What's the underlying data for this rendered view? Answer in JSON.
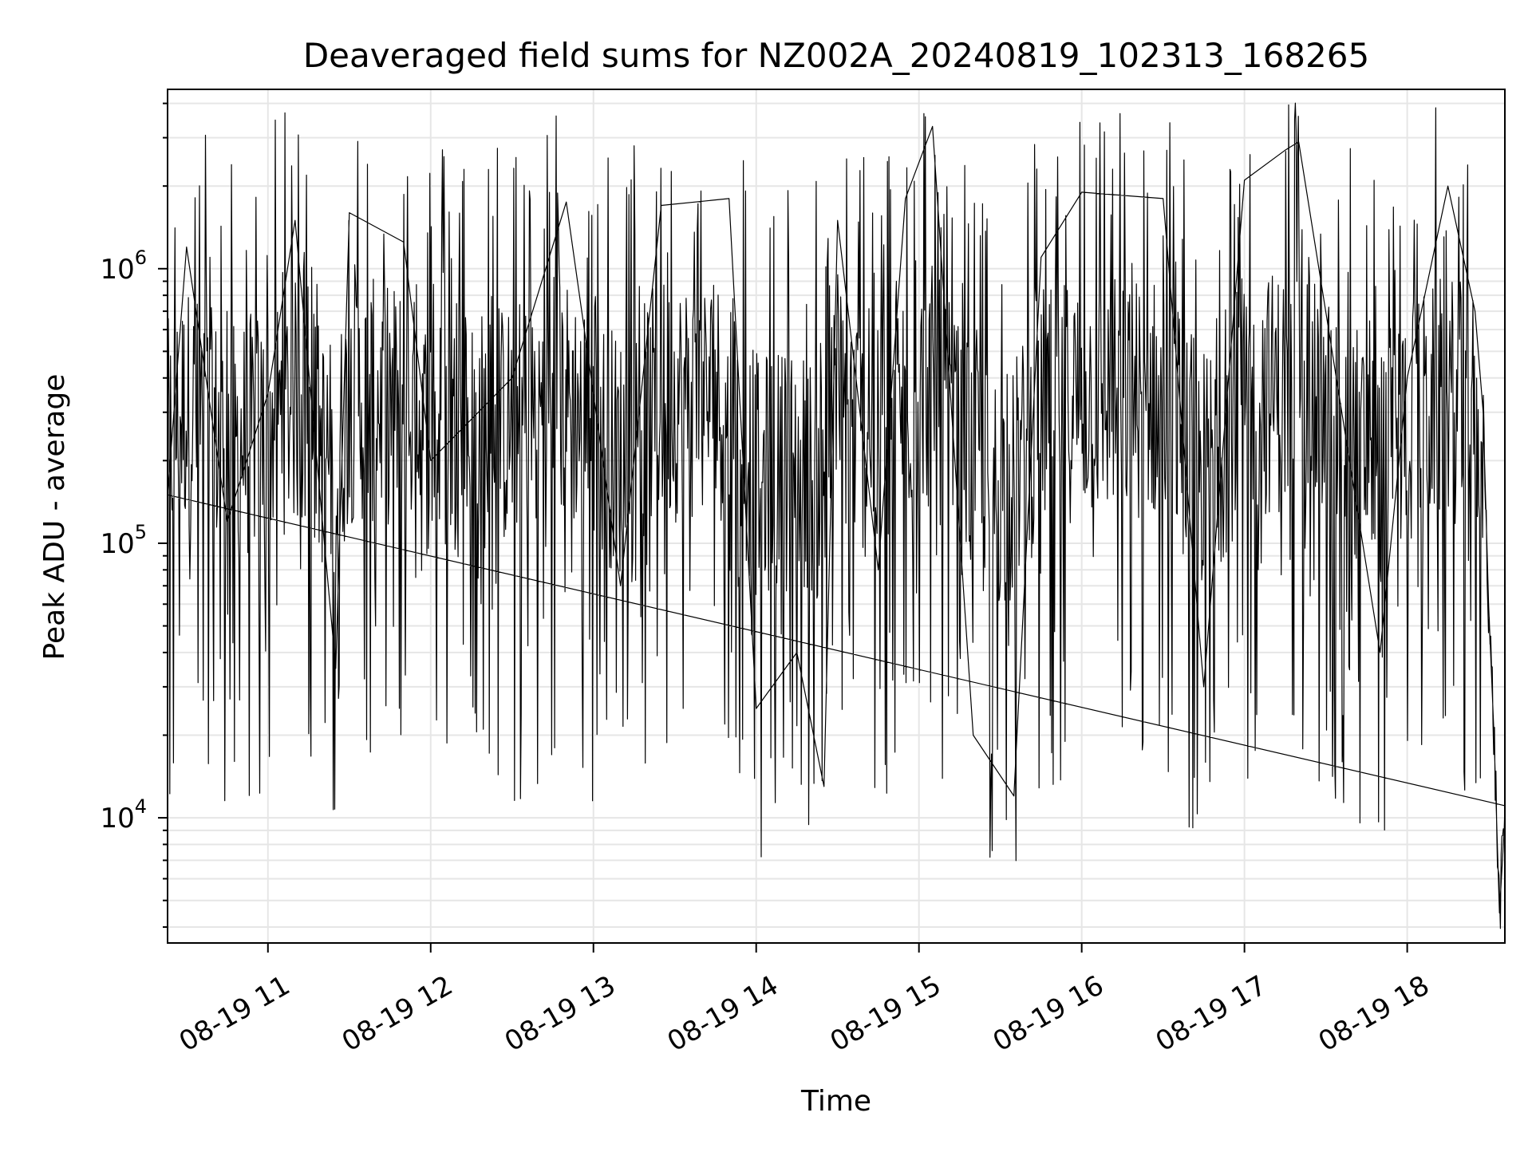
{
  "chart_data": {
    "type": "line",
    "title": "Deaveraged field sums for NZ002A_20240819_102313_168265",
    "xlabel": "Time",
    "ylabel": "Peak ADU - average",
    "yscale": "log",
    "xlim": [
      "08-19 10:23",
      "08-19 18:36"
    ],
    "ylim": [
      3500,
      4500000
    ],
    "grid": true,
    "line_color": "#000000",
    "grid_color": "#e6e6e6",
    "x_ticks": [
      "08-19 11",
      "08-19 12",
      "08-19 13",
      "08-19 14",
      "08-19 15",
      "08-19 16",
      "08-19 17",
      "08-19 18"
    ],
    "x_tick_hours": [
      11,
      12,
      13,
      14,
      15,
      16,
      17,
      18
    ],
    "y_ticks": [
      {
        "value": 10000,
        "base": "10",
        "exp": "4"
      },
      {
        "value": 100000,
        "base": "10",
        "exp": "5"
      },
      {
        "value": 1000000,
        "base": "10",
        "exp": "6"
      }
    ],
    "series": [
      {
        "x_start": "08-19 10:23",
        "x_end": "08-19 18:36",
        "description_points": [
          {
            "time": "10:23",
            "value": 150000
          },
          {
            "time": "10:30",
            "value": 1200000
          },
          {
            "time": "10:45",
            "value": 120000
          },
          {
            "time": "11:00",
            "value": 350000
          },
          {
            "time": "11:10",
            "value": 1500000
          },
          {
            "time": "11:25",
            "value": 35000
          },
          {
            "time": "11:30",
            "value": 1600000
          },
          {
            "time": "11:50",
            "value": 1250000
          },
          {
            "time": "12:00",
            "value": 200000
          },
          {
            "time": "12:30",
            "value": 400000
          },
          {
            "time": "12:50",
            "value": 1750000
          },
          {
            "time": "13:10",
            "value": 70000
          },
          {
            "time": "13:25",
            "value": 1700000
          },
          {
            "time": "13:50",
            "value": 1800000
          },
          {
            "time": "14:00",
            "value": 25000
          },
          {
            "time": "14:15",
            "value": 40000
          },
          {
            "time": "14:25",
            "value": 13000
          },
          {
            "time": "14:30",
            "value": 1500000
          },
          {
            "time": "14:45",
            "value": 80000
          },
          {
            "time": "14:55",
            "value": 1800000
          },
          {
            "time": "15:05",
            "value": 3300000
          },
          {
            "time": "15:20",
            "value": 20000
          },
          {
            "time": "15:35",
            "value": 12000
          },
          {
            "time": "15:45",
            "value": 1100000
          },
          {
            "time": "16:00",
            "value": 1900000
          },
          {
            "time": "16:30",
            "value": 1800000
          },
          {
            "time": "16:45",
            "value": 30000
          },
          {
            "time": "17:00",
            "value": 2100000
          },
          {
            "time": "17:15",
            "value": 2700000
          },
          {
            "time": "17:20",
            "value": 2900000
          },
          {
            "time": "17:50",
            "value": 40000
          },
          {
            "time": "18:00",
            "value": 400000
          },
          {
            "time": "18:15",
            "value": 2000000
          },
          {
            "time": "18:25",
            "value": 700000
          },
          {
            "time": "18:28",
            "value": 300000
          },
          {
            "time": "18:30",
            "value": 60000
          },
          {
            "time": "18:32",
            "value": 20000
          },
          {
            "time": "18:34",
            "value": 4500
          },
          {
            "time": "18:36",
            "value": 10000
          }
        ]
      }
    ]
  }
}
